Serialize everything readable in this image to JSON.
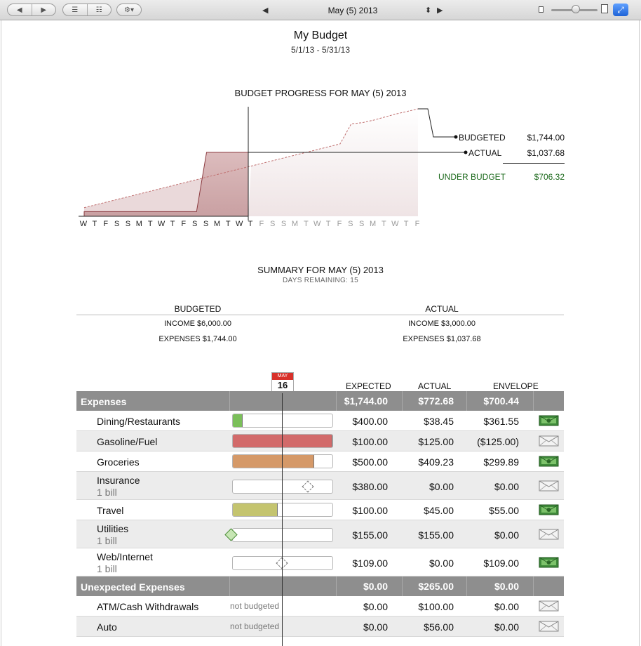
{
  "toolbar": {
    "period": "May (5) 2013",
    "prev_arrow": "◀",
    "next_arrow": "▶",
    "stepper": "⬍",
    "gear": "⚙▾",
    "fullscreen": "⤢"
  },
  "report": {
    "title": "My Budget",
    "date_range": "5/1/13 - 5/31/13"
  },
  "progress": {
    "title": "BUDGET PROGRESS FOR MAY (5) 2013",
    "budgeted_label": "BUDGETED",
    "budgeted_value": "$1,744.00",
    "actual_label": "ACTUAL",
    "actual_value": "$1,037.68",
    "under_label": "UNDER BUDGET",
    "under_value": "$706.32",
    "under_color": "#1d6a1d"
  },
  "chart_data": {
    "type": "area",
    "days": [
      "W",
      "T",
      "F",
      "S",
      "S",
      "M",
      "T",
      "W",
      "T",
      "F",
      "S",
      "S",
      "M",
      "T",
      "W",
      "T",
      "F",
      "S",
      "S",
      "M",
      "T",
      "W",
      "T",
      "F",
      "S",
      "S",
      "M",
      "T",
      "W",
      "T",
      "F"
    ],
    "today_index": 15,
    "actual_cumulative": [
      75.17,
      75.17,
      75.17,
      75.17,
      75.17,
      75.17,
      75.17,
      75.17,
      75.17,
      75.17,
      75.17,
      1037.68,
      1037.68,
      1037.68,
      1037.68,
      1037.68
    ],
    "budget_cumulative": [
      140,
      185,
      230,
      275,
      320,
      365,
      410,
      455,
      500,
      545,
      590,
      635,
      680,
      725,
      770,
      815,
      860,
      905,
      950,
      995,
      1040,
      1085,
      1130,
      1175,
      1500,
      1520,
      1560,
      1610,
      1660,
      1700,
      1744
    ],
    "ylim": [
      0,
      1744
    ],
    "colors": {
      "actual_fill": "#c9a0a2",
      "actual_line": "#8b3a3f",
      "budget_line": "#c07070",
      "future_fill": "#efe4e5"
    }
  },
  "summary": {
    "title": "SUMMARY FOR MAY (5) 2013",
    "days_remaining": "DAYS REMAINING: 15",
    "budgeted_header": "BUDGETED",
    "actual_header": "ACTUAL",
    "budgeted_income": "INCOME $6,000.00",
    "budgeted_expenses": "EXPENSES $1,744.00",
    "actual_income": "INCOME $3,000.00",
    "actual_expenses": "EXPENSES $1,037.68"
  },
  "table": {
    "today_month": "MAY",
    "today_day": "16",
    "col_expected": "EXPECTED",
    "col_actual": "ACTUAL",
    "col_envelope": "ENVELOPE",
    "groups": [
      {
        "name": "Expenses",
        "expected": "$1,744.00",
        "actual": "$772.68",
        "envelope": "$700.44",
        "rows": [
          {
            "name": "Dining/Restaurants",
            "sub": "",
            "progress": 0.1,
            "bar_color": "#7bbf5a",
            "expected": "$400.00",
            "actual": "$38.45",
            "envelope": "$361.55",
            "env": "cash"
          },
          {
            "name": "Gasoline/Fuel",
            "sub": "",
            "progress": 1.0,
            "bar_color": "#d26a6a",
            "expected": "$100.00",
            "actual": "$125.00",
            "envelope": "($125.00)",
            "env": "empty"
          },
          {
            "name": "Groceries",
            "sub": "",
            "progress": 0.82,
            "bar_color": "#d59968",
            "expected": "$500.00",
            "actual": "$409.23",
            "envelope": "$299.89",
            "env": "cash"
          },
          {
            "name": "Insurance",
            "sub": "1 bill",
            "progress": 0,
            "bar_color": "",
            "expected": "$380.00",
            "actual": "$0.00",
            "envelope": "$0.00",
            "env": "empty",
            "due": 0.76
          },
          {
            "name": "Travel",
            "sub": "",
            "progress": 0.45,
            "bar_color": "#c4c46f",
            "expected": "$100.00",
            "actual": "$45.00",
            "envelope": "$55.00",
            "env": "cash"
          },
          {
            "name": "Utilities",
            "sub": "1 bill",
            "progress": 0,
            "bar_color": "",
            "expected": "$155.00",
            "actual": "$155.00",
            "envelope": "$0.00",
            "env": "empty",
            "paid": 0.0
          },
          {
            "name": "Web/Internet",
            "sub": "1 bill",
            "progress": 0,
            "bar_color": "",
            "expected": "$109.00",
            "actual": "$0.00",
            "envelope": "$109.00",
            "env": "cash",
            "due": 0.5
          }
        ]
      },
      {
        "name": "Unexpected Expenses",
        "expected": "$0.00",
        "actual": "$265.00",
        "envelope": "$0.00",
        "rows": [
          {
            "name": "ATM/Cash Withdrawals",
            "nb": "not budgeted",
            "expected": "$0.00",
            "actual": "$100.00",
            "envelope": "$0.00",
            "env": "empty"
          },
          {
            "name": "Auto",
            "nb": "not budgeted",
            "expected": "$0.00",
            "actual": "$56.00",
            "envelope": "$0.00",
            "env": "empty"
          }
        ]
      }
    ]
  }
}
